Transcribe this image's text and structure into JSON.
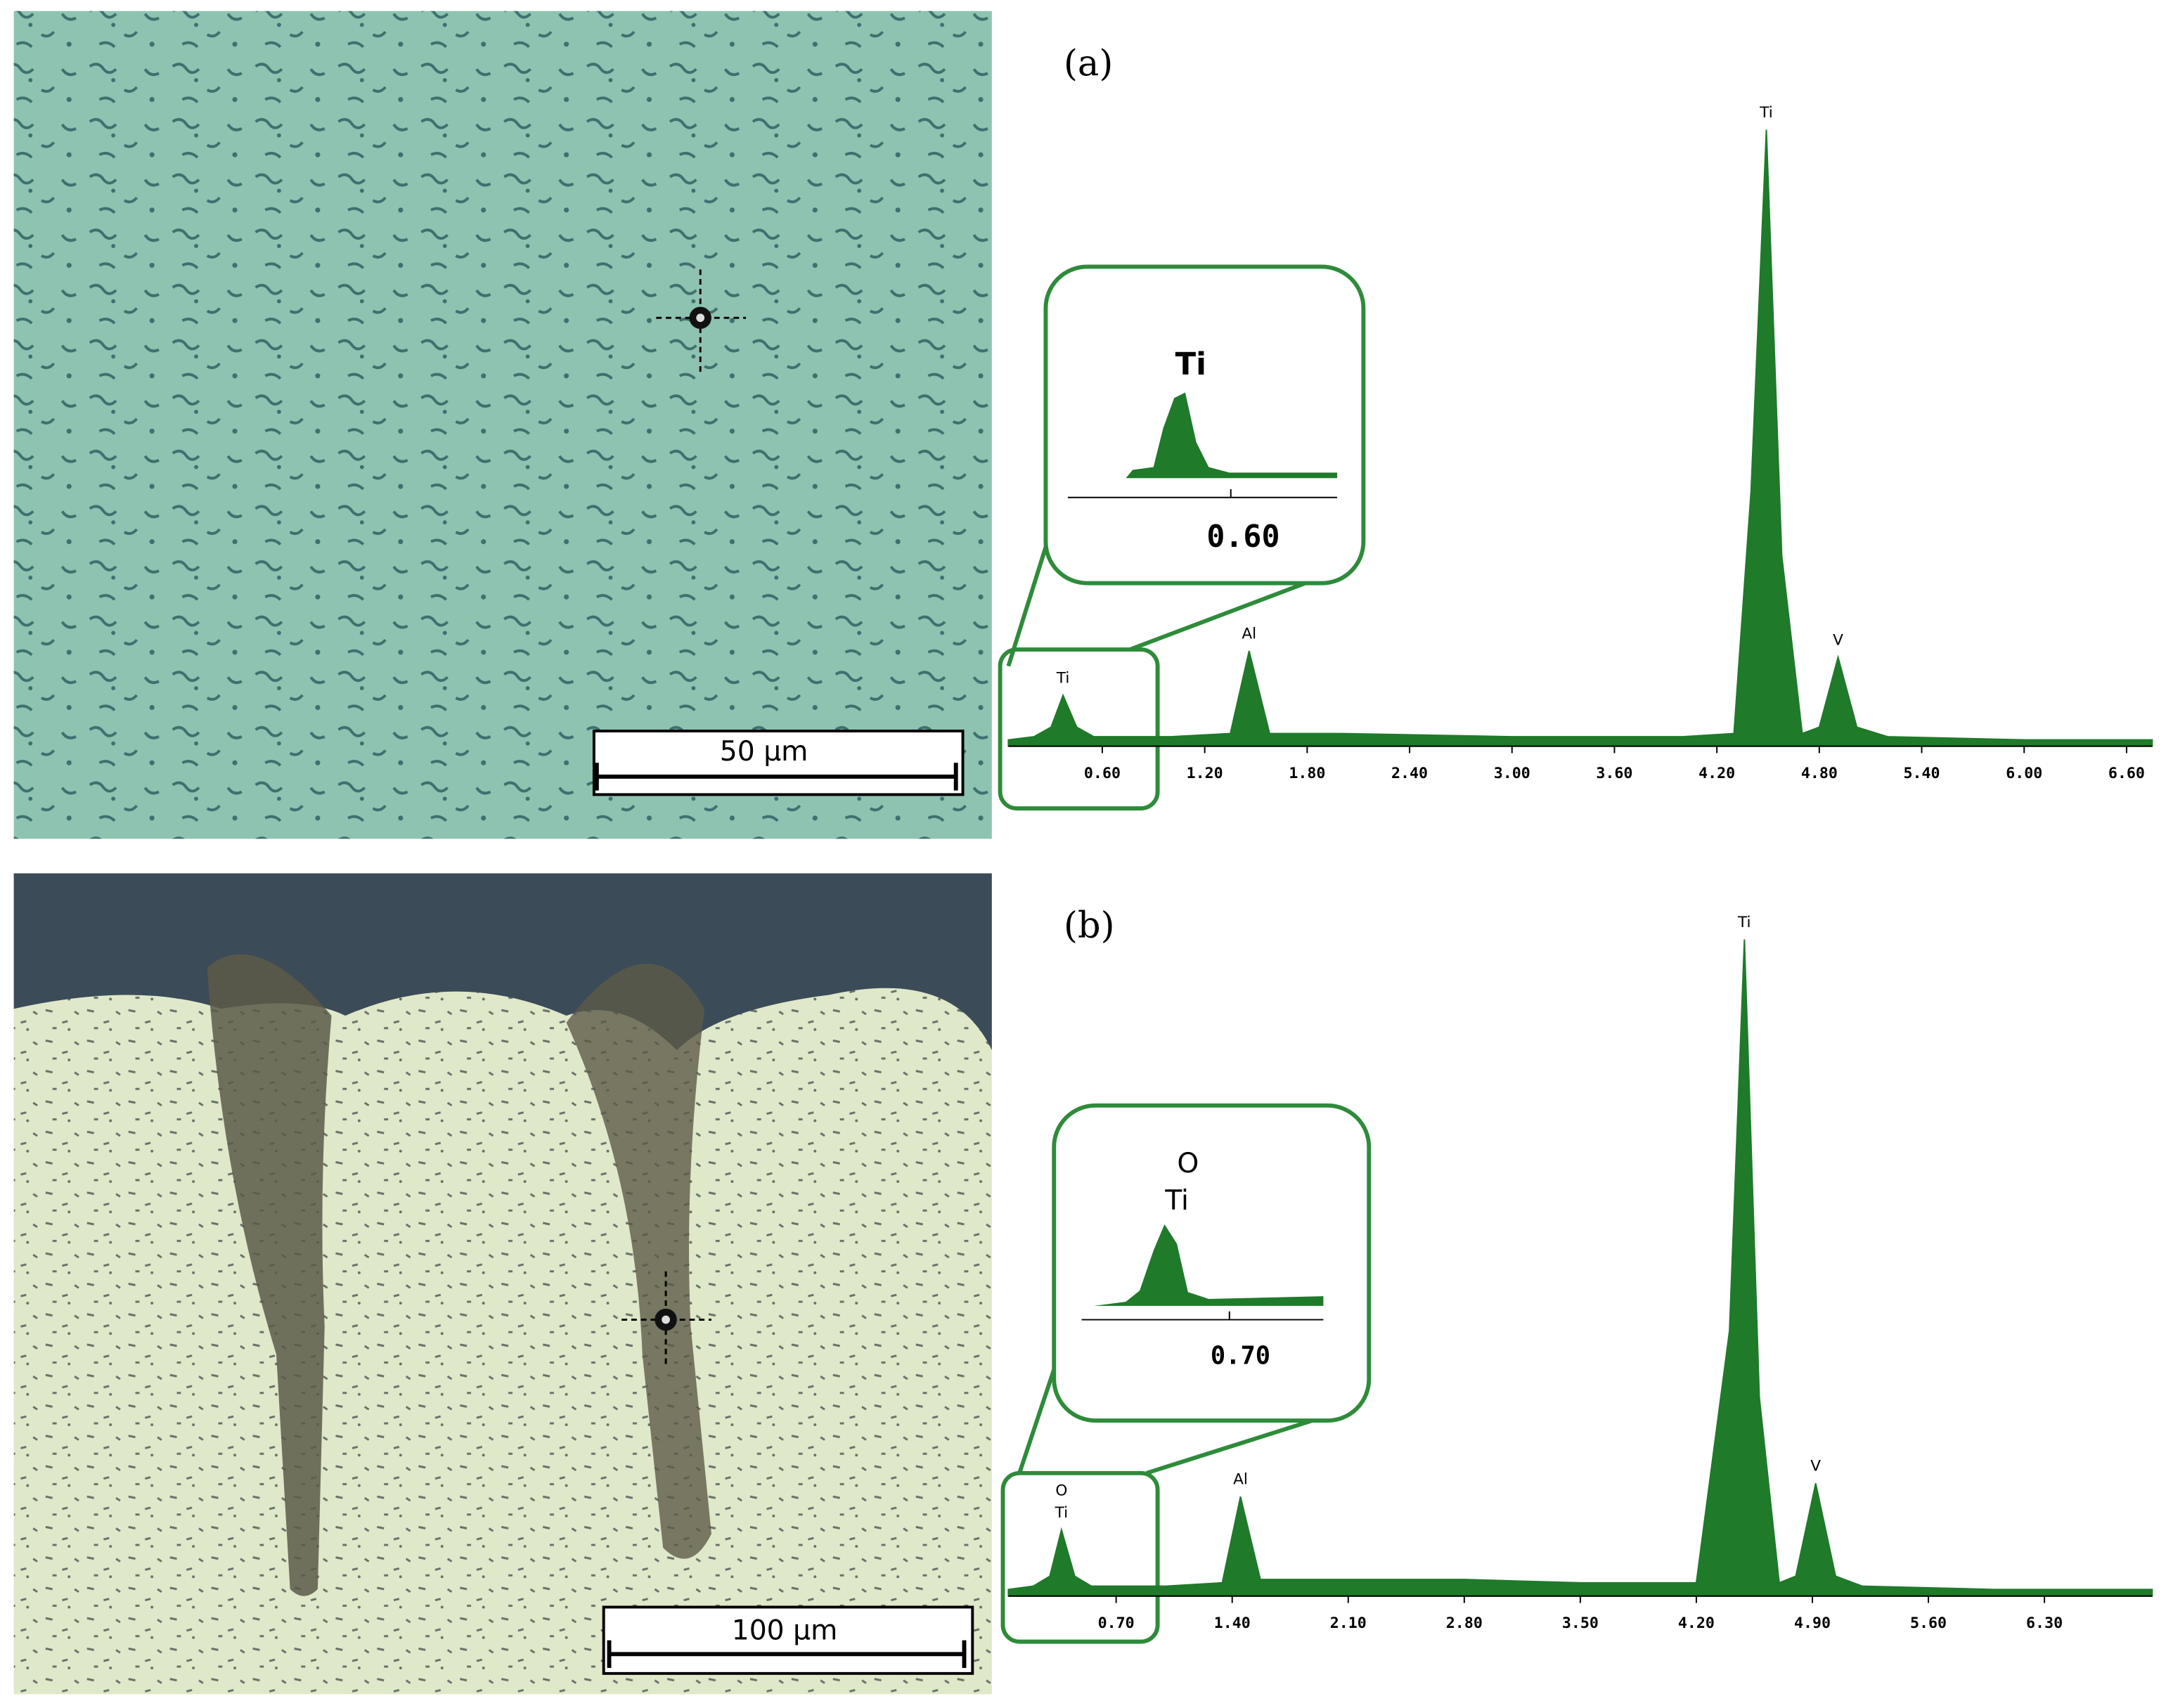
{
  "panels": [
    {
      "label": "(a)",
      "scale_bar": "50 µm"
    },
    {
      "label": "(b)",
      "scale_bar": "100 µm"
    }
  ],
  "chart_data": [
    {
      "type": "area",
      "color": "#1f7a2a",
      "x": [
        0.05,
        0.2,
        0.3,
        0.37,
        0.45,
        0.55,
        1.0,
        1.35,
        1.46,
        1.58,
        2.0,
        3.0,
        4.0,
        4.3,
        4.4,
        4.49,
        4.58,
        4.7,
        4.8,
        4.91,
        5.02,
        5.2,
        6.0,
        6.75
      ],
      "values": [
        1,
        1.5,
        3,
        8,
        3,
        1.5,
        1.5,
        2,
        15,
        2,
        2,
        1.5,
        1.5,
        2,
        40,
        97,
        30,
        2,
        3,
        14,
        3,
        1.5,
        1,
        1
      ],
      "xlim": [
        0.05,
        6.75
      ],
      "ylim": [
        0,
        100
      ],
      "xticks": [
        {
          "value": 0.6,
          "label": "0.60"
        },
        {
          "value": 1.2,
          "label": "1.20"
        },
        {
          "value": 1.8,
          "label": "1.80"
        },
        {
          "value": 2.4,
          "label": "2.40"
        },
        {
          "value": 3.0,
          "label": "3.00"
        },
        {
          "value": 3.6,
          "label": "3.60"
        },
        {
          "value": 4.2,
          "label": "4.20"
        },
        {
          "value": 4.8,
          "label": "4.80"
        },
        {
          "value": 5.4,
          "label": "5.40"
        },
        {
          "value": 6.0,
          "label": "6.00"
        },
        {
          "value": 6.6,
          "label": "6.60"
        }
      ],
      "annotations": [
        {
          "text": "Ti",
          "x": 0.37
        },
        {
          "text": "Al",
          "x": 1.46
        },
        {
          "text": "Ti",
          "x": 4.49
        },
        {
          "text": "V",
          "x": 4.91
        }
      ],
      "inset": {
        "labels": [
          "Ti"
        ],
        "tick": "0.60"
      }
    },
    {
      "type": "area",
      "color": "#1f7a2a",
      "x": [
        0.05,
        0.2,
        0.3,
        0.37,
        0.45,
        0.55,
        1.0,
        1.34,
        1.45,
        1.57,
        2.0,
        2.8,
        3.5,
        4.2,
        4.4,
        4.49,
        4.58,
        4.7,
        4.8,
        4.92,
        5.04,
        5.2,
        6.0,
        6.95
      ],
      "values": [
        1,
        1.5,
        3,
        10,
        3,
        1.5,
        1.5,
        2,
        15,
        2.5,
        2.5,
        2.5,
        2,
        2,
        40,
        99,
        30,
        2,
        3,
        17,
        3,
        1.5,
        1,
        1
      ],
      "xlim": [
        0.05,
        6.95
      ],
      "ylim": [
        0,
        100
      ],
      "xticks": [
        {
          "value": 0.7,
          "label": "0.70"
        },
        {
          "value": 1.4,
          "label": "1.40"
        },
        {
          "value": 2.1,
          "label": "2.10"
        },
        {
          "value": 2.8,
          "label": "2.80"
        },
        {
          "value": 3.5,
          "label": "3.50"
        },
        {
          "value": 4.2,
          "label": "4.20"
        },
        {
          "value": 4.9,
          "label": "4.90"
        },
        {
          "value": 5.6,
          "label": "5.60"
        },
        {
          "value": 6.3,
          "label": "6.30"
        }
      ],
      "annotations": [
        {
          "text": "O",
          "x": 0.37
        },
        {
          "text": "Ti",
          "x": 0.37
        },
        {
          "text": "Al",
          "x": 1.45
        },
        {
          "text": "Ti",
          "x": 4.49
        },
        {
          "text": "V",
          "x": 4.92
        }
      ],
      "inset": {
        "labels": [
          "O",
          "Ti"
        ],
        "tick": "0.70"
      }
    }
  ]
}
